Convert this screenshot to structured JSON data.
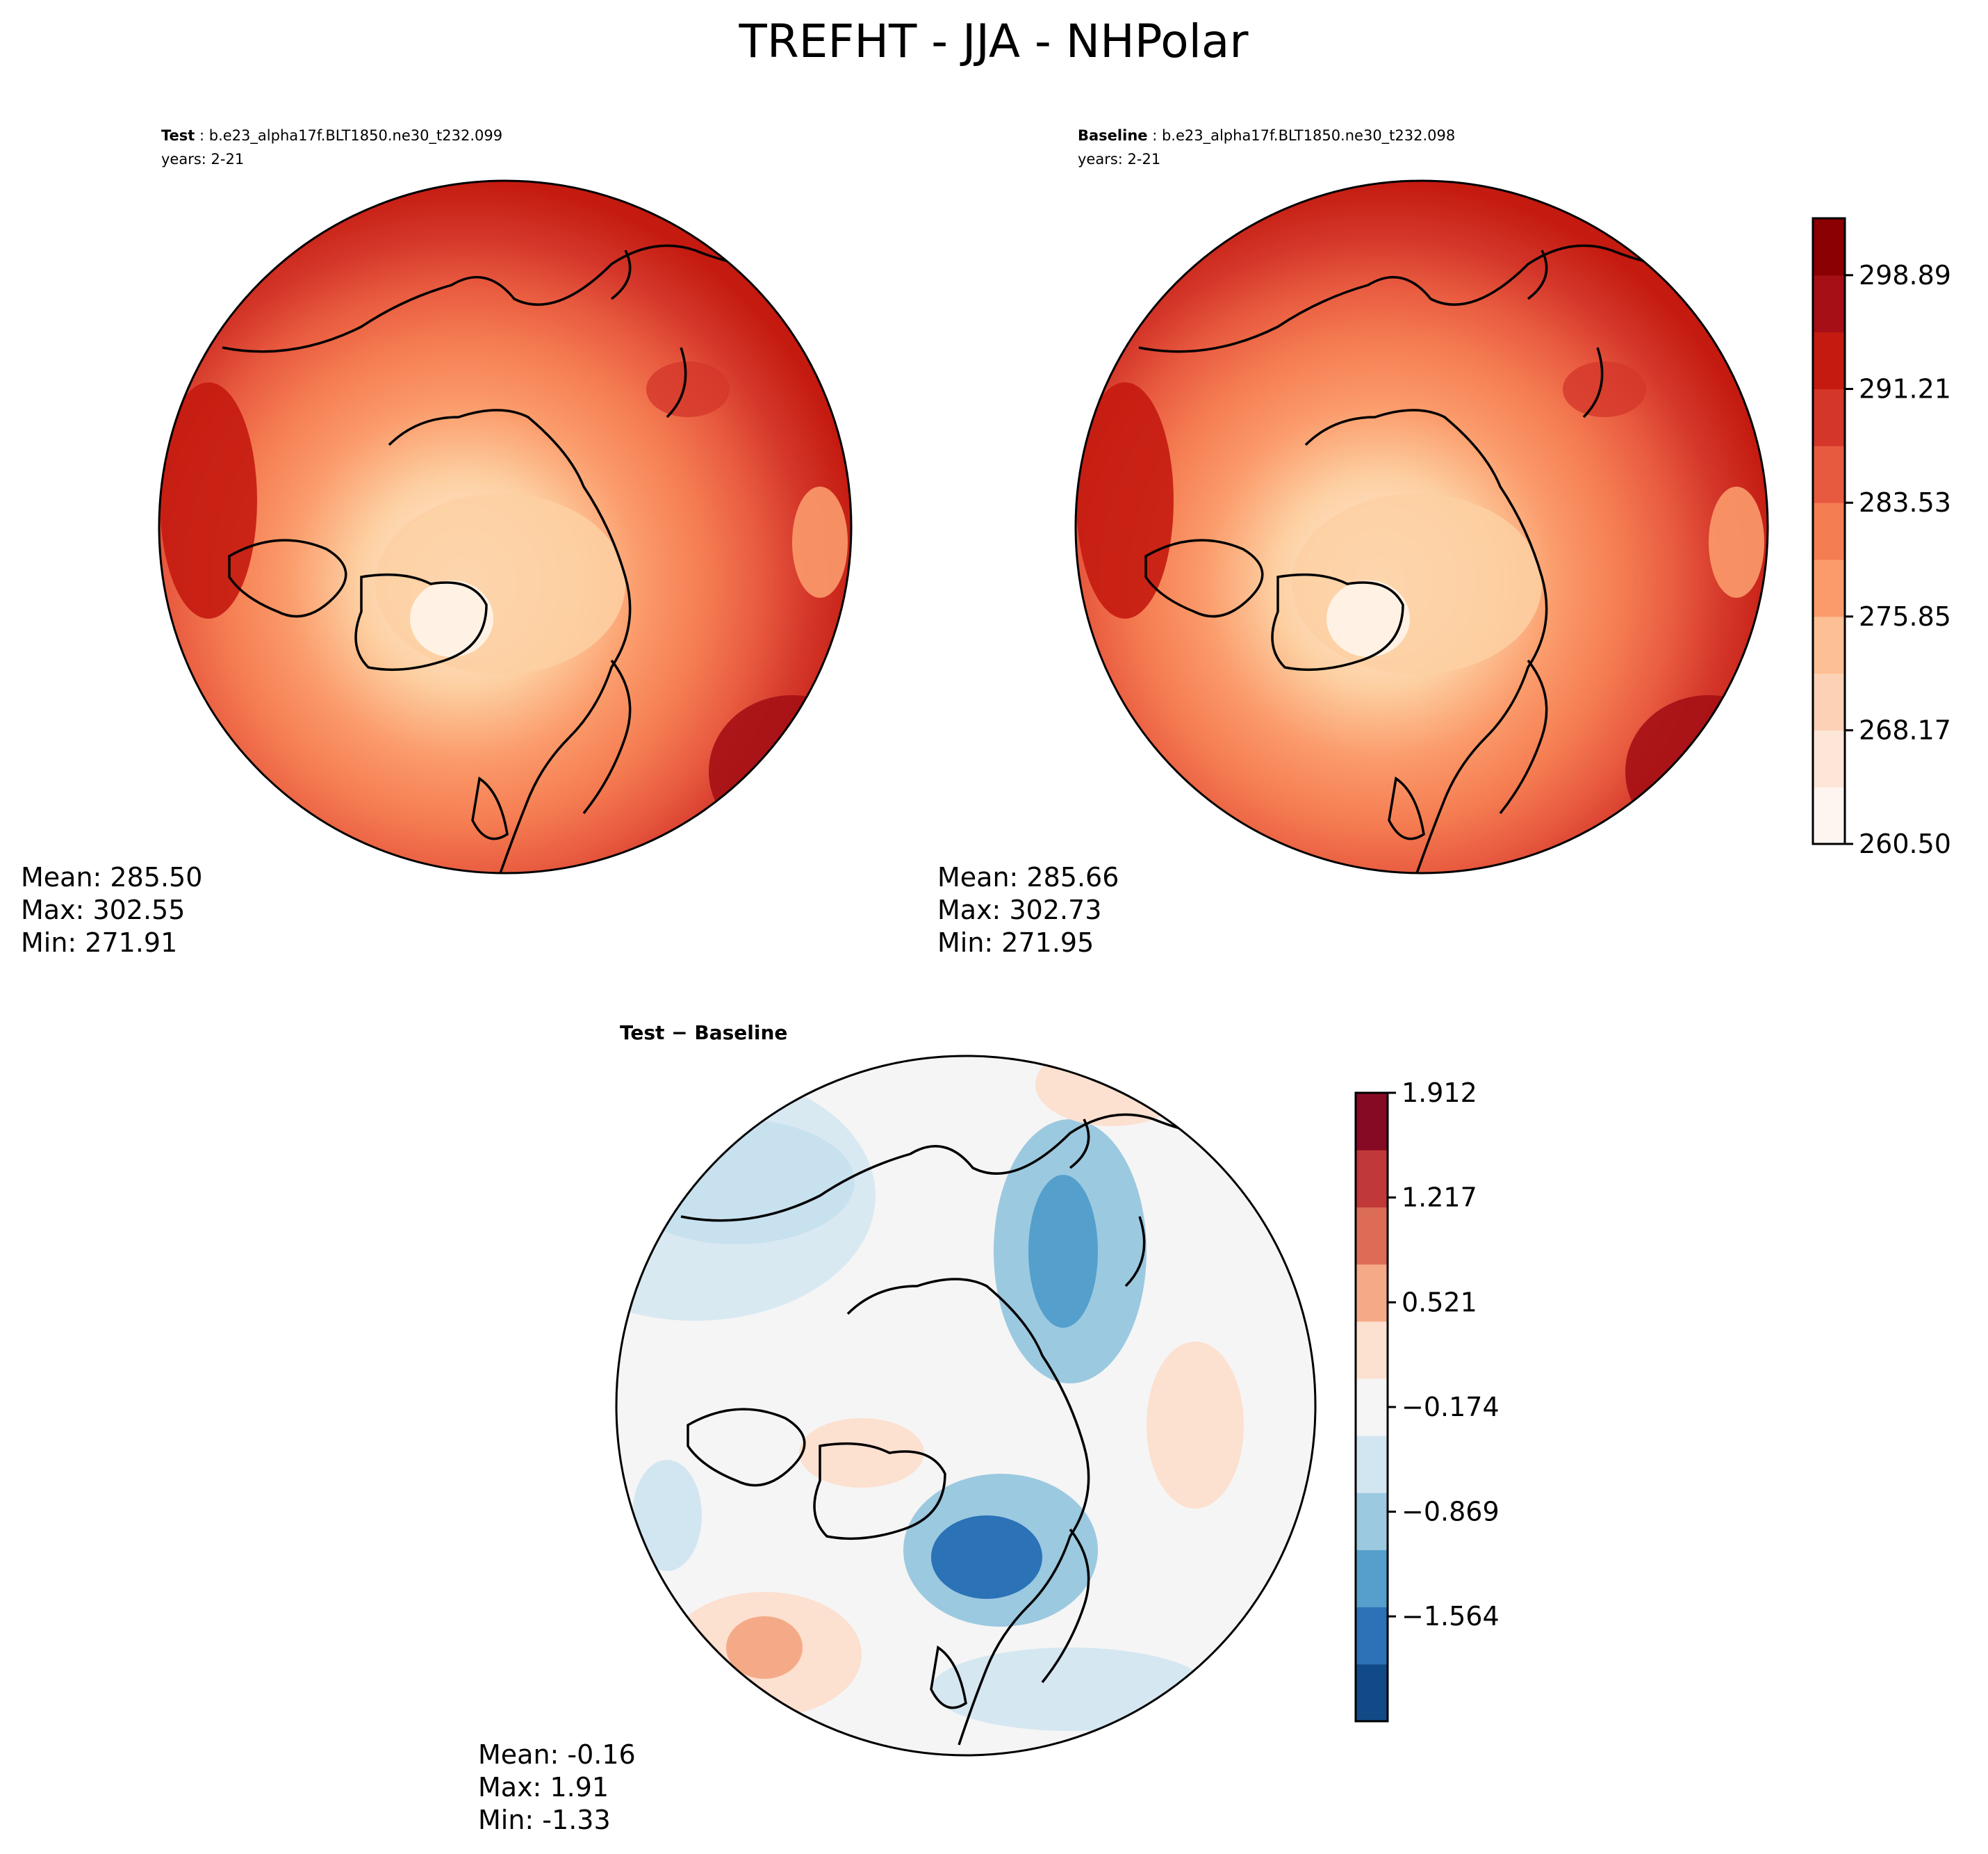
{
  "title": "TREFHT - JJA - NHPolar",
  "colors": {
    "test_palette": [
      "#fff5eb",
      "#fee6ce",
      "#fdd0a2",
      "#fdae6b",
      "#fd8d3c",
      "#f16913",
      "#d94801",
      "#a63603",
      "#7f2704"
    ],
    "reds_scale": [
      "#fff5f0",
      "#fde6d8",
      "#fcd1b5",
      "#fdbf94",
      "#fb9b6b",
      "#f57d52",
      "#e85a3f",
      "#d4372a",
      "#c41a10",
      "#a50f15",
      "#8b0000"
    ],
    "diff_scale": [
      "#124a87",
      "#2b72b6",
      "#549fcc",
      "#9bc9e0",
      "#d2e6f1",
      "#f5f5f5",
      "#fce0d0",
      "#f5aa87",
      "#dc6c55",
      "#c13838",
      "#870a24"
    ],
    "land": "#000000"
  },
  "test_panel": {
    "label": "Test",
    "case": "b.e23_alpha17f.BLT1850.ne30_t232.099",
    "years": "years: 2-21",
    "stats": {
      "mean": "Mean: 285.50",
      "max": "Max: 302.55",
      "min": "Min: 271.91"
    }
  },
  "baseline_panel": {
    "label": "Baseline",
    "case": "b.e23_alpha17f.BLT1850.ne30_t232.098",
    "years": "years: 2-21",
    "stats": {
      "mean": "Mean: 285.66",
      "max": "Max: 302.73",
      "min": "Min: 271.95"
    }
  },
  "diff_panel": {
    "label": "Test − Baseline",
    "stats": {
      "mean": "Mean: -0.16",
      "max": "Max:  1.91",
      "min": "Min: -1.33"
    }
  },
  "chart_data": [
    {
      "type": "heatmap",
      "name": "test",
      "projection": "north polar stereographic",
      "variable": "TREFHT",
      "season": "JJA",
      "region": "NHPolar",
      "mean": 285.5,
      "max": 302.55,
      "min": 271.91
    },
    {
      "type": "heatmap",
      "name": "baseline",
      "projection": "north polar stereographic",
      "variable": "TREFHT",
      "season": "JJA",
      "region": "NHPolar",
      "mean": 285.66,
      "max": 302.73,
      "min": 271.95
    },
    {
      "type": "heatmap",
      "name": "difference",
      "projection": "north polar stereographic",
      "mean": -0.16,
      "max": 1.91,
      "min": -1.33
    },
    {
      "type": "colorbar",
      "name": "absolute_colorbar",
      "range": [
        260.5,
        302.73
      ],
      "tick_values": [
        260.5,
        268.17,
        275.85,
        283.53,
        291.21,
        298.89
      ],
      "tick_labels": [
        "260.50",
        "268.17",
        "275.85",
        "283.53",
        "291.21",
        "298.89"
      ]
    },
    {
      "type": "colorbar",
      "name": "diff_colorbar",
      "range": [
        -2.26,
        1.912
      ],
      "tick_values": [
        -1.564,
        -0.869,
        -0.174,
        0.521,
        1.217,
        1.912
      ],
      "tick_labels": [
        "−1.564",
        "−0.869",
        "−0.174",
        "0.521",
        "1.217",
        "1.912"
      ]
    }
  ]
}
